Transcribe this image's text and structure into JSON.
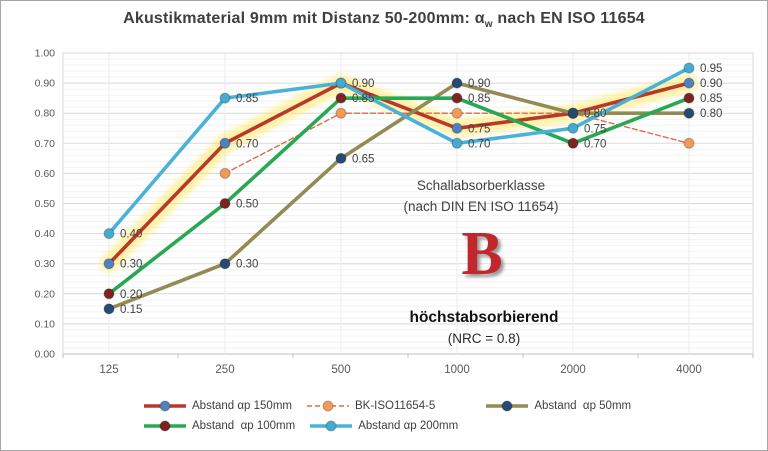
{
  "title": {
    "text_before_sub": "Akustikmaterial 9mm mit Distanz 50-200mm: α",
    "sub": "w",
    "text_after_sub": " nach EN ISO 11654"
  },
  "chart_data": {
    "type": "line",
    "title": "Akustikmaterial 9mm mit Distanz 50-200mm: αw nach EN ISO 11654",
    "x_categories": [
      "125",
      "250",
      "500",
      "1000",
      "2000",
      "4000"
    ],
    "xlabel": "",
    "ylabel": "",
    "ylim": [
      0.0,
      1.0
    ],
    "y_tick_labels": [
      "0.00",
      "0.10",
      "0.20",
      "0.30",
      "0.40",
      "0.50",
      "0.60",
      "0.70",
      "0.80",
      "0.90",
      "1.00"
    ],
    "grid": "major and minor horizontal gridlines, light vertical gridlines at categories",
    "legend_position": "bottom",
    "series": [
      {
        "name": "Abstand αp 150mm",
        "color": "#b8392c",
        "marker_color": "#4f81bd",
        "dashed": false,
        "highlighted": true,
        "values": [
          0.3,
          0.7,
          0.9,
          0.75,
          0.8,
          0.9
        ],
        "labels": [
          "0.30",
          "0.70",
          "0.90",
          "0.75",
          null,
          "0.90"
        ]
      },
      {
        "name": "BK-ISO11654-5",
        "color": "#dc6a4b",
        "marker_color": "#f09a55",
        "dashed": true,
        "highlighted": false,
        "values": [
          null,
          0.6,
          0.8,
          0.8,
          0.8,
          0.7
        ],
        "labels": [
          null,
          null,
          null,
          null,
          null,
          null
        ]
      },
      {
        "name": "Abstand  αp 50mm",
        "color": "#938a54",
        "marker_color": "#264a72",
        "dashed": false,
        "highlighted": false,
        "values": [
          0.15,
          0.3,
          0.65,
          0.9,
          0.8,
          0.8
        ],
        "labels": [
          "0.15",
          "0.30",
          "0.65",
          "0.90",
          "0.80",
          "0.80"
        ]
      },
      {
        "name": "Abstand  αp 100mm",
        "color": "#29a853",
        "marker_color": "#7d2423",
        "dashed": false,
        "highlighted": false,
        "values": [
          0.2,
          0.5,
          0.85,
          0.85,
          0.7,
          0.85
        ],
        "labels": [
          "0.20",
          "0.50",
          "0.85",
          "0.85",
          "0.70",
          "0.85"
        ]
      },
      {
        "name": "Abstand αp 200mm",
        "color": "#4ab2d8",
        "marker_color": "#45aacf",
        "dashed": false,
        "highlighted": false,
        "values": [
          0.4,
          0.85,
          0.9,
          0.7,
          0.75,
          0.95
        ],
        "labels": [
          "0.40",
          "0.85",
          null,
          "0.70",
          "0.75",
          "0.95"
        ]
      }
    ],
    "highlight": {
      "series": "Abstand αp 150mm",
      "color": "#ffe75e"
    },
    "annotations": {
      "class_label_line1": "Schallabsorberklasse",
      "class_label_line2": "(nach DIN EN ISO 11654)",
      "class_letter": "B",
      "class_letter_color": "#c1272d",
      "class_desc": "höchstabsorbierend",
      "class_nrc": "(NRC = 0.8)"
    }
  },
  "legend": {
    "rows": [
      [
        0,
        1,
        2
      ],
      [
        3,
        4
      ]
    ]
  }
}
